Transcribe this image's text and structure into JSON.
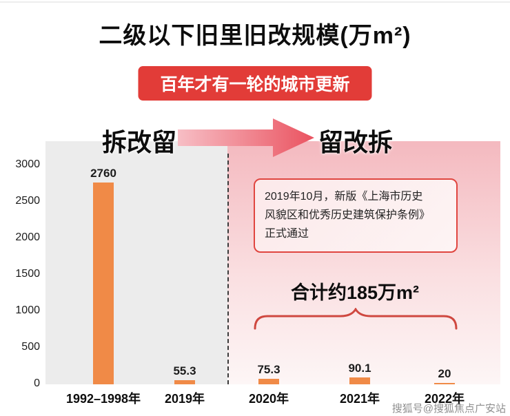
{
  "title": "二级以下旧里旧改规模(万m²)",
  "banner": "百年才有一轮的城市更新",
  "phases": {
    "left": "拆改留",
    "right": "留改拆"
  },
  "annotation": {
    "lines": [
      "2019年10月，新版《上海市历史",
      "风貌区和优秀历史建筑保护条例》",
      "正式通过"
    ]
  },
  "total_label": "合计约185万m²",
  "watermark": "搜狐号@搜狐焦点广安站",
  "colors": {
    "bar": "#f08a47",
    "banner_red": "#e23c38",
    "accent_red": "#cf4840"
  },
  "chart_data": {
    "type": "bar",
    "title": "二级以下旧里旧改规模(万m²)",
    "subtitle": "百年才有一轮的城市更新",
    "categories": [
      "1992–1998年",
      "2019年",
      "2020年",
      "2021年",
      "2022年"
    ],
    "values": [
      2760,
      55.3,
      75.3,
      90.1,
      20
    ],
    "xlabel": "",
    "ylabel": "",
    "ylim": [
      0,
      3000
    ],
    "yticks": [
      0,
      500,
      1000,
      1500,
      2000,
      2500,
      3000
    ],
    "bar_color": "#f08a47",
    "grid": false,
    "legend": false,
    "annotations": [
      "拆改留 → 留改拆",
      "2019年10月，新版《上海市历史风貌区和优秀历史建筑保护条例》正式通过",
      "合计约185万m²"
    ]
  }
}
